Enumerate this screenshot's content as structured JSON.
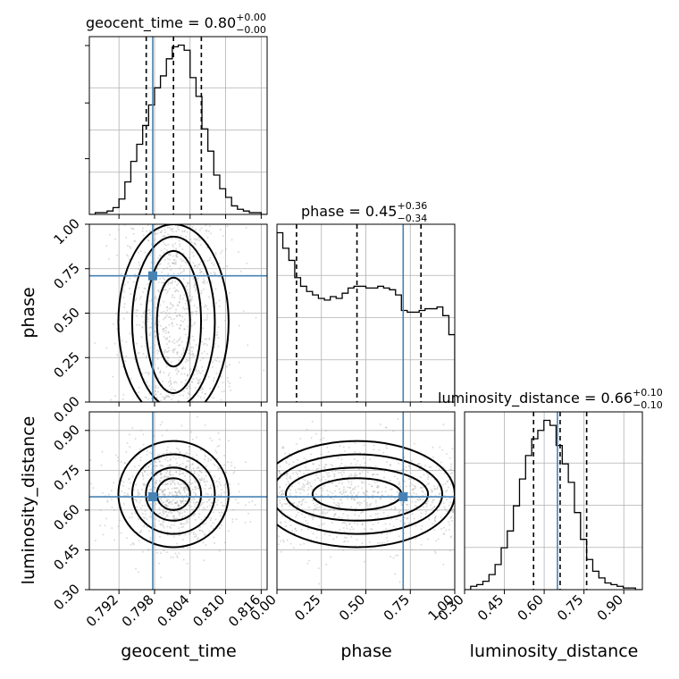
{
  "chart_data": {
    "type": "corner",
    "parameters": [
      "geocent_time",
      "phase",
      "luminosity_distance"
    ],
    "truths": {
      "geocent_time": 0.7977,
      "phase": 0.71,
      "luminosity_distance": 0.65
    },
    "titles": [
      {
        "param": "geocent_time",
        "text": "geocent_time = 0.80",
        "plus": "+0.00",
        "minus": "−0.00"
      },
      {
        "param": "phase",
        "text": "phase = 0.45",
        "plus": "+0.36",
        "minus": "−0.34"
      },
      {
        "param": "luminosity_distance",
        "text": "luminosity_distance = 0.66",
        "plus": "+0.10",
        "minus": "−0.10"
      }
    ],
    "axes": {
      "geocent_time": {
        "range": [
          0.787,
          0.817
        ],
        "ticks": [
          0.792,
          0.798,
          0.804,
          0.81,
          0.816
        ],
        "tick_labels": [
          "0.792",
          "0.798",
          "0.804",
          "0.810",
          "0.816"
        ]
      },
      "phase": {
        "range": [
          0.0,
          1.0
        ],
        "ticks": [
          0.0,
          0.25,
          0.5,
          0.75,
          1.0
        ],
        "tick_labels": [
          "0.00",
          "0.25",
          "0.50",
          "0.75",
          "1.00"
        ]
      },
      "luminosity_distance": {
        "range": [
          0.3,
          0.97
        ],
        "ticks": [
          0.3,
          0.45,
          0.6,
          0.75,
          0.9
        ],
        "tick_labels": [
          "0.30",
          "0.45",
          "0.60",
          "0.75",
          "0.90"
        ]
      }
    },
    "histograms": {
      "geocent_time": {
        "bin_edges": [
          0.787,
          0.788,
          0.789,
          0.79,
          0.791,
          0.792,
          0.793,
          0.794,
          0.795,
          0.796,
          0.797,
          0.798,
          0.799,
          0.8,
          0.801,
          0.802,
          0.803,
          0.804,
          0.805,
          0.806,
          0.807,
          0.808,
          0.809,
          0.81,
          0.811,
          0.812,
          0.813,
          0.814,
          0.815,
          0.816,
          0.817
        ],
        "counts": [
          0,
          1,
          1,
          2,
          4,
          9,
          19,
          31,
          41,
          52,
          64,
          74,
          81,
          91,
          98,
          99,
          96,
          80,
          69,
          50,
          37,
          23,
          15,
          10,
          5,
          3,
          2,
          1,
          1,
          0
        ],
        "quantiles": [
          0.7966,
          0.8012,
          0.8059
        ]
      },
      "phase": {
        "bin_edges": [
          0.0,
          0.033,
          0.067,
          0.1,
          0.133,
          0.167,
          0.2,
          0.233,
          0.267,
          0.3,
          0.333,
          0.367,
          0.4,
          0.433,
          0.467,
          0.5,
          0.533,
          0.567,
          0.6,
          0.633,
          0.667,
          0.7,
          0.733,
          0.767,
          0.8,
          0.833,
          0.867,
          0.9,
          0.933,
          0.967,
          1.0
        ],
        "counts": [
          98,
          89,
          82,
          72,
          67,
          64,
          62,
          60,
          59,
          61,
          60,
          63,
          66,
          67,
          67,
          66,
          66,
          67,
          66,
          65,
          62,
          53,
          52,
          52,
          53,
          54,
          54,
          55,
          50,
          39
        ],
        "quantiles": [
          0.11,
          0.45,
          0.81
        ]
      },
      "luminosity_distance": {
        "bin_edges": [
          0.3,
          0.323,
          0.346,
          0.369,
          0.392,
          0.415,
          0.438,
          0.461,
          0.484,
          0.507,
          0.53,
          0.553,
          0.576,
          0.599,
          0.622,
          0.645,
          0.668,
          0.691,
          0.714,
          0.737,
          0.76,
          0.783,
          0.806,
          0.829,
          0.852,
          0.875,
          0.898,
          0.921,
          0.944,
          0.967
        ],
        "counts": [
          0,
          2,
          3,
          5,
          9,
          15,
          25,
          35,
          50,
          66,
          80,
          90,
          95,
          101,
          98,
          86,
          75,
          64,
          46,
          30,
          18,
          11,
          7,
          4,
          3,
          2,
          1,
          1,
          0
        ],
        "quantiles": [
          0.56,
          0.66,
          0.76
        ]
      }
    },
    "grid": true
  }
}
